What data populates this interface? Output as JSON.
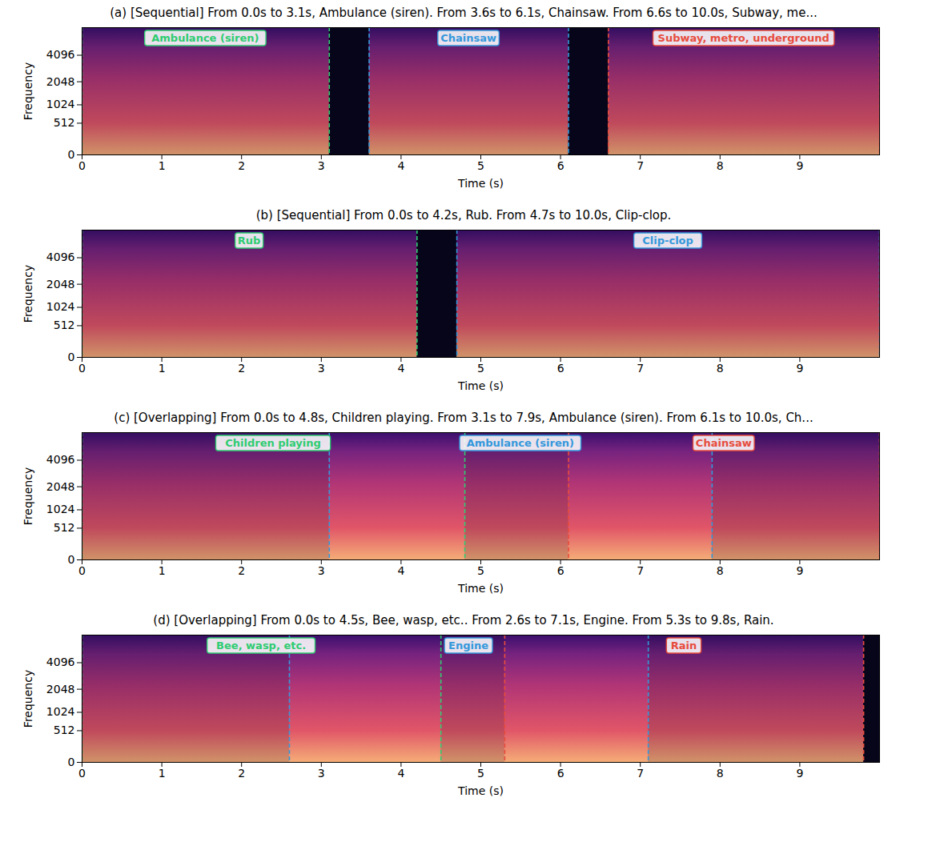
{
  "chart_data": [
    {
      "type": "spectrogram",
      "title": "(a) [Sequential] From 0.0s to 3.1s, Ambulance (siren). From 3.6s to 6.1s, Chainsaw. From 6.6s to 10.0s, Subway, me...",
      "xlabel": "Time (s)",
      "ylabel": "Frequency",
      "xlim": [
        0,
        10
      ],
      "xticks": [
        0,
        1,
        2,
        3,
        4,
        5,
        6,
        7,
        8,
        9
      ],
      "ylim": [
        0,
        8000
      ],
      "yticks": [
        0,
        512,
        1024,
        2048,
        4096
      ],
      "events": [
        {
          "name": "Ambulance (siren)",
          "color": "#2ecc71",
          "start": 0.0,
          "end": 3.1
        },
        {
          "name": "Chainsaw",
          "color": "#3498db",
          "start": 3.6,
          "end": 6.1
        },
        {
          "name": "Subway, metro, underground",
          "color": "#e74c3c",
          "start": 6.6,
          "end": 10.0
        }
      ]
    },
    {
      "type": "spectrogram",
      "title": "(b) [Sequential] From 0.0s to 4.2s, Rub. From 4.7s to 10.0s, Clip-clop.",
      "xlabel": "Time (s)",
      "ylabel": "Frequency",
      "xlim": [
        0,
        10
      ],
      "xticks": [
        0,
        1,
        2,
        3,
        4,
        5,
        6,
        7,
        8,
        9
      ],
      "ylim": [
        0,
        8000
      ],
      "yticks": [
        0,
        512,
        1024,
        2048,
        4096
      ],
      "events": [
        {
          "name": "Rub",
          "color": "#2ecc71",
          "start": 0.0,
          "end": 4.2
        },
        {
          "name": "Clip-clop",
          "color": "#3498db",
          "start": 4.7,
          "end": 10.0
        }
      ]
    },
    {
      "type": "spectrogram",
      "title": "(c) [Overlapping] From 0.0s to 4.8s, Children playing. From 3.1s to 7.9s, Ambulance (siren). From 6.1s to 10.0s, Ch...",
      "xlabel": "Time (s)",
      "ylabel": "Frequency",
      "xlim": [
        0,
        10
      ],
      "xticks": [
        0,
        1,
        2,
        3,
        4,
        5,
        6,
        7,
        8,
        9
      ],
      "ylim": [
        0,
        8000
      ],
      "yticks": [
        0,
        512,
        1024,
        2048,
        4096
      ],
      "events": [
        {
          "name": "Children playing",
          "color": "#2ecc71",
          "start": 0.0,
          "end": 4.8
        },
        {
          "name": "Ambulance (siren)",
          "color": "#3498db",
          "start": 3.1,
          "end": 7.9
        },
        {
          "name": "Chainsaw",
          "color": "#e74c3c",
          "start": 6.1,
          "end": 10.0
        }
      ]
    },
    {
      "type": "spectrogram",
      "title": "(d) [Overlapping] From 0.0s to 4.5s, Bee, wasp, etc.. From 2.6s to 7.1s, Engine. From 5.3s to 9.8s, Rain.",
      "xlabel": "Time (s)",
      "ylabel": "Frequency",
      "xlim": [
        0,
        10
      ],
      "xticks": [
        0,
        1,
        2,
        3,
        4,
        5,
        6,
        7,
        8,
        9
      ],
      "ylim": [
        0,
        8000
      ],
      "yticks": [
        0,
        512,
        1024,
        2048,
        4096
      ],
      "events": [
        {
          "name": "Bee, wasp, etc.",
          "color": "#2ecc71",
          "start": 0.0,
          "end": 4.5
        },
        {
          "name": "Engine",
          "color": "#3498db",
          "start": 2.6,
          "end": 7.1
        },
        {
          "name": "Rain",
          "color": "#e74c3c",
          "start": 5.3,
          "end": 9.8
        }
      ]
    }
  ]
}
